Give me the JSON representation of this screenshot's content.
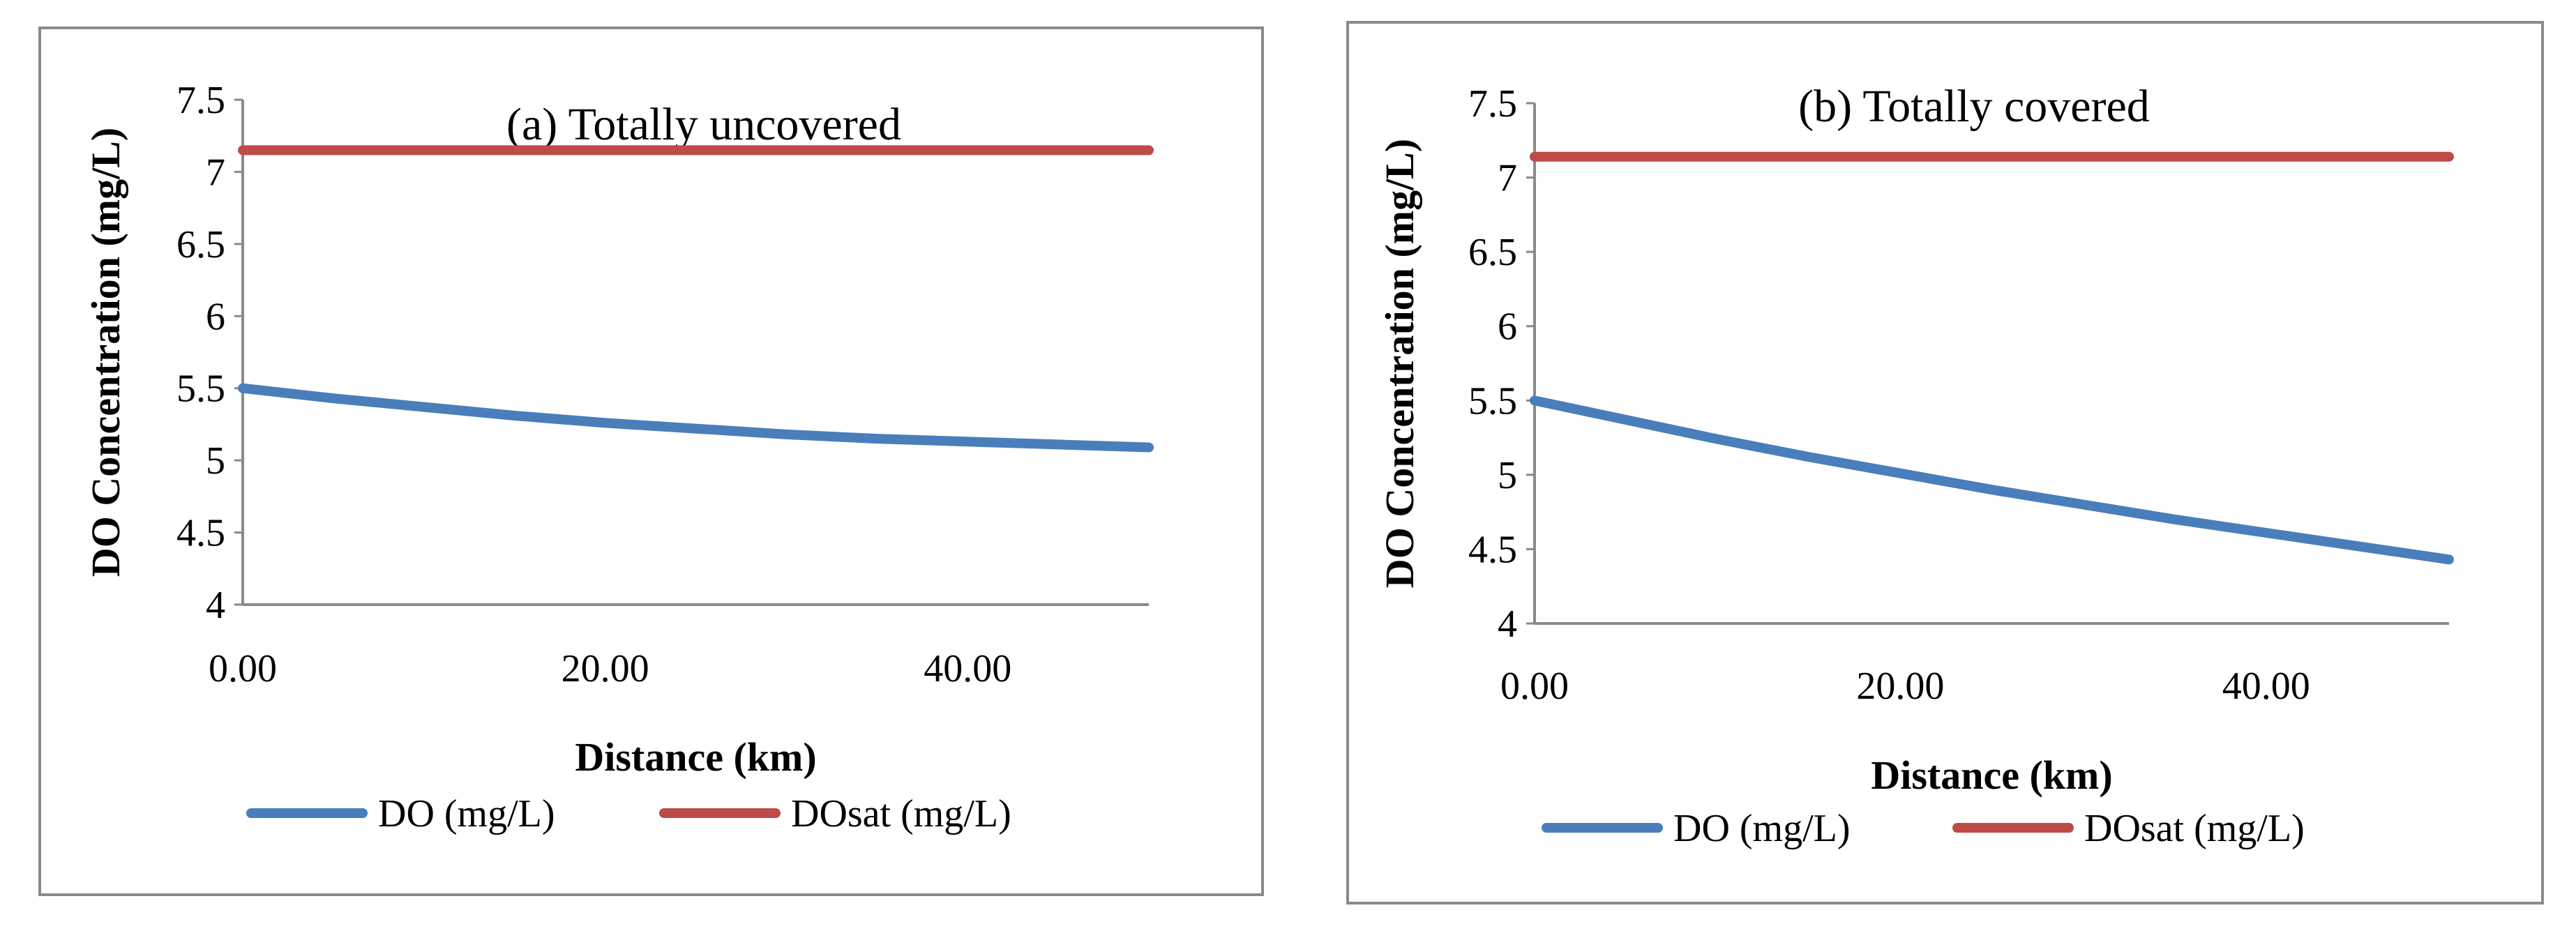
{
  "chart_data": [
    {
      "type": "line",
      "title": "(a) Totally uncovered",
      "xlabel": "Distance (km)",
      "ylabel": "DO Concentration (mg/L)",
      "xlim": [
        0,
        50
      ],
      "ylim": [
        4,
        7.5
      ],
      "x_ticks": [
        0,
        20,
        40
      ],
      "x_tick_labels": [
        "0.00",
        "20.00",
        "40.00"
      ],
      "y_ticks": [
        4,
        4.5,
        5,
        5.5,
        6,
        6.5,
        7,
        7.5
      ],
      "y_tick_labels": [
        "4",
        "4.5",
        "5",
        "5.5",
        "6",
        "6.5",
        "7",
        "7.5"
      ],
      "legend_position": "bottom",
      "series": [
        {
          "name": "DO (mg/L)",
          "color": "#4a7ebb",
          "x": [
            0,
            5,
            10,
            15,
            20,
            25,
            30,
            35,
            40,
            45,
            50
          ],
          "y": [
            5.5,
            5.43,
            5.37,
            5.31,
            5.26,
            5.22,
            5.18,
            5.15,
            5.13,
            5.11,
            5.09
          ]
        },
        {
          "name": "DOsat (mg/L)",
          "color": "#be4b48",
          "x": [
            0,
            50
          ],
          "y": [
            7.15,
            7.15
          ]
        }
      ]
    },
    {
      "type": "line",
      "title": "(b) Totally covered",
      "xlabel": "Distance (km)",
      "ylabel": "DO Concentration (mg/L)",
      "xlim": [
        0,
        50
      ],
      "ylim": [
        4,
        7.5
      ],
      "x_ticks": [
        0,
        20,
        40
      ],
      "x_tick_labels": [
        "0.00",
        "20.00",
        "40.00"
      ],
      "y_ticks": [
        4,
        4.5,
        5,
        5.5,
        6,
        6.5,
        7,
        7.5
      ],
      "y_tick_labels": [
        "4",
        "4.5",
        "5",
        "5.5",
        "6",
        "6.5",
        "7",
        "7.5"
      ],
      "legend_position": "bottom",
      "series": [
        {
          "name": "DO (mg/L)",
          "color": "#4a7ebb",
          "x": [
            0,
            5,
            10,
            15,
            20,
            25,
            30,
            35,
            40,
            45,
            50
          ],
          "y": [
            5.5,
            5.37,
            5.24,
            5.12,
            5.01,
            4.9,
            4.8,
            4.7,
            4.61,
            4.52,
            4.43
          ]
        },
        {
          "name": "DOsat (mg/L)",
          "color": "#be4b48",
          "x": [
            0,
            50
          ],
          "y": [
            7.14,
            7.14
          ]
        }
      ]
    }
  ]
}
